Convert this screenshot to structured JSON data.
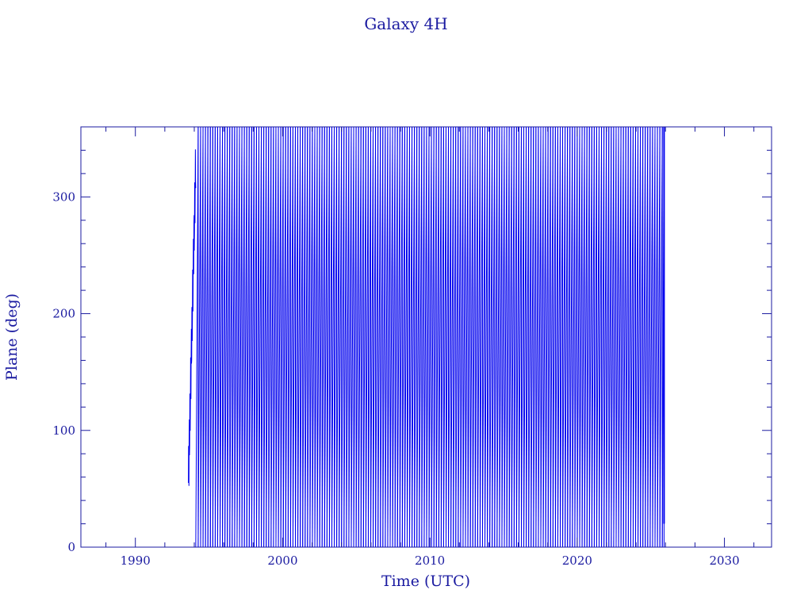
{
  "chart_data": {
    "type": "line",
    "title": "Galaxy 4H",
    "xlabel": "Time (UTC)",
    "ylabel": "Plane (deg)",
    "xlim": [
      1986.3,
      2033.2
    ],
    "ylim": [
      0,
      360
    ],
    "x_ticks": [
      "1990",
      "2000",
      "2010",
      "2020",
      "2030"
    ],
    "y_ticks": [
      "0",
      "100",
      "200",
      "300"
    ],
    "x_tick_values": [
      1990,
      2000,
      2010,
      2020,
      2030
    ],
    "y_tick_values": [
      0,
      100,
      200,
      300
    ],
    "grid": false,
    "colors": {
      "line": "#0000ee",
      "axes": "#1a1aa0"
    },
    "series": [
      {
        "description": "Orbital plane angle wraps 0–360 deg repeatedly; dense oscillation from launch through end of record",
        "start_year": 1993.6,
        "start_value": 55,
        "end_year": 2025.9,
        "wrap_period_years": 0.165,
        "phase_start_value": 240
      }
    ]
  }
}
